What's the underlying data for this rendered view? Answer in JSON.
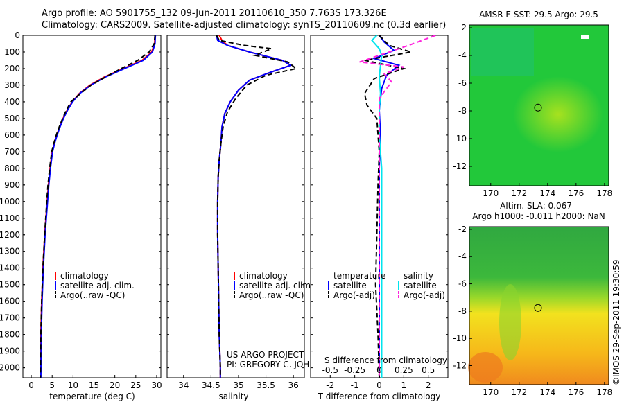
{
  "header": {
    "line1": "Argo profile: AO 5901755_132 09-Jun-2011 20110610_350 7.763S 173.326E",
    "line2": "Climatology: CARS2009. Satellite-adjusted climatology: synTS_20110609.nc (0.3d earlier)"
  },
  "colors": {
    "climatology": "#ff0000",
    "satellite": "#0000ff",
    "argo": "#000000",
    "sat_salinity": "#00e5ee",
    "argo_salinity": "#ff22dd"
  },
  "y_ticks": [
    "0",
    "100",
    "200",
    "300",
    "400",
    "500",
    "600",
    "700",
    "800",
    "900",
    "1000",
    "1100",
    "1200",
    "1300",
    "1400",
    "1500",
    "1600",
    "1700",
    "1800",
    "1900",
    "2000"
  ],
  "chart_data": [
    {
      "type": "line",
      "xlabel": "temperature (deg C)",
      "xlim": [
        -2,
        31
      ],
      "ylim": [
        2060,
        0
      ],
      "x_ticks": [
        "0",
        "5",
        "10",
        "15",
        "20",
        "25",
        "30"
      ],
      "legend_placement": "lower-middle",
      "legend": [
        "climatology",
        "satellite-adj. clim.",
        "Argo(..raw -QC)"
      ],
      "series": [
        {
          "name": "climatology",
          "style": "solid",
          "color": "red",
          "x": [
            29.6,
            29.5,
            28.8,
            26.5,
            22,
            17.5,
            14,
            11.5,
            9.8,
            8.6,
            7.6,
            6.8,
            6.1,
            5.5,
            5.0,
            4.5,
            4.1,
            3.8,
            3.2,
            2.8,
            2.5,
            2.3,
            2.2
          ],
          "y": [
            0,
            50,
            100,
            150,
            200,
            250,
            300,
            350,
            400,
            450,
            500,
            550,
            600,
            650,
            700,
            800,
            900,
            1000,
            1200,
            1400,
            1600,
            1800,
            2060
          ]
        },
        {
          "name": "satellite-adj. clim.",
          "style": "solid",
          "color": "blue",
          "x": [
            29.7,
            29.6,
            29.0,
            26.8,
            22.3,
            17.8,
            14.2,
            11.6,
            9.9,
            8.7,
            7.7,
            6.9,
            6.2,
            5.6,
            5.1,
            4.6,
            4.2,
            3.9,
            3.3,
            2.9,
            2.6,
            2.4,
            2.3
          ],
          "y": [
            0,
            50,
            100,
            150,
            200,
            250,
            300,
            350,
            400,
            450,
            500,
            550,
            600,
            650,
            700,
            800,
            900,
            1000,
            1200,
            1400,
            1600,
            1800,
            2060
          ]
        },
        {
          "name": "Argo(..raw -QC)",
          "style": "dashed",
          "color": "black",
          "x": [
            29.6,
            29.4,
            28.2,
            25.5,
            21.5,
            17.8,
            14.3,
            11.8,
            9.5,
            8.4,
            7.5,
            6.7,
            6.0,
            5.4,
            4.9,
            4.4,
            4.0,
            3.7,
            3.2,
            2.8,
            2.5,
            2.3,
            2.2
          ],
          "y": [
            0,
            50,
            100,
            150,
            200,
            250,
            300,
            350,
            400,
            450,
            500,
            550,
            600,
            650,
            700,
            800,
            900,
            1000,
            1200,
            1400,
            1600,
            1800,
            2060
          ]
        }
      ]
    },
    {
      "type": "line",
      "xlabel": "salinity",
      "xlim": [
        33.7,
        36.2
      ],
      "ylim": [
        2060,
        0
      ],
      "x_ticks": [
        "34",
        "34.5",
        "35",
        "35.5",
        "36"
      ],
      "legend_placement": "lower-middle",
      "legend": [
        "climatology",
        "satellite-adj. clim.",
        "Argo(..raw -QC)"
      ],
      "annotation_line1": "US ARGO PROJECT",
      "annotation_line2": "PI: GREGORY C. JOHNSON",
      "series": [
        {
          "name": "climatology",
          "style": "solid",
          "color": "red",
          "x": [
            34.65,
            34.7,
            34.8,
            35.2,
            35.8,
            35.95,
            35.6,
            35.2,
            35.0,
            34.85,
            34.75,
            34.7,
            34.68,
            34.65,
            34.63,
            34.62,
            34.62,
            34.63,
            34.64,
            34.65,
            34.66,
            34.67,
            34.67
          ],
          "y": [
            0,
            30,
            60,
            100,
            150,
            180,
            220,
            270,
            330,
            400,
            470,
            550,
            650,
            750,
            850,
            1000,
            1200,
            1400,
            1600,
            1800,
            1900,
            2000,
            2060
          ]
        },
        {
          "name": "satellite-adj. clim.",
          "style": "solid",
          "color": "blue",
          "x": [
            34.6,
            34.62,
            34.8,
            35.2,
            35.8,
            35.95,
            35.6,
            35.2,
            35.0,
            34.85,
            34.75,
            34.7,
            34.68,
            34.65,
            34.63,
            34.62,
            34.62,
            34.63,
            34.64,
            34.65,
            34.66,
            34.67,
            34.67
          ],
          "y": [
            0,
            30,
            60,
            100,
            150,
            180,
            220,
            270,
            330,
            400,
            470,
            550,
            650,
            750,
            850,
            1000,
            1200,
            1400,
            1600,
            1800,
            1900,
            2000,
            2060
          ]
        },
        {
          "name": "Argo(..raw -QC)",
          "style": "dashed",
          "color": "black",
          "x": [
            34.6,
            34.65,
            35.1,
            35.6,
            35.3,
            35.9,
            36.05,
            35.5,
            35.15,
            34.95,
            34.8,
            34.72,
            34.68,
            34.65,
            34.63,
            34.62,
            34.62,
            34.63,
            34.64,
            34.65,
            34.66,
            34.67,
            34.67
          ],
          "y": [
            0,
            30,
            60,
            80,
            120,
            160,
            200,
            240,
            300,
            380,
            460,
            550,
            650,
            750,
            850,
            1000,
            1200,
            1400,
            1600,
            1800,
            1900,
            2000,
            2060
          ]
        }
      ]
    },
    {
      "type": "line",
      "xlabel": "T difference from climatology",
      "xlabel_top": "S difference from climatology",
      "xlim": [
        -2.8,
        2.8
      ],
      "ylim": [
        2060,
        0
      ],
      "x_ticks": [
        "-2",
        "-1",
        "0",
        "1",
        "2"
      ],
      "top_ticks": [
        "-0.5",
        "-0.25",
        "0",
        "0.25",
        "0.5"
      ],
      "legend_placement": "lower-middle",
      "legend_titles": [
        "temperature",
        "salinity"
      ],
      "legend": [
        "satellite",
        "Argo(-adj)",
        "satellite",
        "Argo(-adj)"
      ],
      "series": [
        {
          "name": "temperature satellite",
          "style": "solid",
          "color": "blue",
          "x": [
            0,
            0.2,
            0.6,
            -0.2,
            0.8,
            0.3,
            0.1,
            0,
            0.05,
            0,
            0,
            0,
            0,
            0,
            0
          ],
          "y": [
            0,
            40,
            90,
            140,
            180,
            240,
            320,
            450,
            600,
            800,
            1000,
            1300,
            1600,
            1900,
            2060
          ]
        },
        {
          "name": "temperature Argo(-adj)",
          "style": "dashed",
          "color": "black",
          "x": [
            0,
            0.4,
            1.3,
            -0.6,
            1.0,
            -0.2,
            -0.6,
            -0.5,
            -0.1,
            0,
            -0.05,
            -0.1,
            -0.15,
            -0.05,
            0
          ],
          "y": [
            0,
            60,
            100,
            150,
            200,
            260,
            350,
            420,
            500,
            700,
            900,
            1200,
            1500,
            1800,
            2060
          ]
        },
        {
          "name": "salinity satellite",
          "style": "solid",
          "color": "cyan",
          "x": [
            -0.1,
            -0.3,
            0,
            0.1,
            0.05,
            0,
            0.05,
            0,
            0,
            0.1,
            0.1,
            0.1,
            0.1,
            0.1,
            0.1
          ],
          "y": [
            0,
            30,
            80,
            120,
            180,
            250,
            350,
            450,
            600,
            800,
            1000,
            1300,
            1600,
            1900,
            2060
          ]
        },
        {
          "name": "salinity Argo(-adj)",
          "style": "dashed",
          "color": "magenta",
          "x": [
            2.3,
            1.2,
            -0.8,
            1.0,
            0.2,
            0.5,
            0,
            0,
            0,
            0,
            0,
            0,
            0,
            0,
            0
          ],
          "y": [
            0,
            60,
            160,
            190,
            230,
            280,
            380,
            500,
            650,
            800,
            1000,
            1300,
            1600,
            1900,
            2060
          ]
        }
      ]
    },
    {
      "type": "heatmap",
      "title": "AMSR-E SST: 29.5  Argo: 29.5",
      "x_ticks": [
        "170",
        "172",
        "174",
        "176",
        "178"
      ],
      "y_ticks": [
        "-2",
        "-4",
        "-6",
        "-8",
        "-10",
        "-12"
      ],
      "xlim": [
        168.5,
        178.3
      ],
      "ylim": [
        -13.4,
        -1.8
      ],
      "marker": {
        "x": 173.326,
        "y": -7.763
      }
    },
    {
      "type": "heatmap",
      "title_line1": "Altim. SLA: 0.067",
      "title_line2": "Argo h1000: -0.011 h2000: NaN",
      "x_ticks": [
        "170",
        "172",
        "174",
        "176",
        "178"
      ],
      "y_ticks": [
        "-2",
        "-4",
        "-6",
        "-8",
        "-10",
        "-12"
      ],
      "xlim": [
        168.5,
        178.3
      ],
      "ylim": [
        -13.4,
        -1.8
      ],
      "marker": {
        "x": 173.326,
        "y": -7.763
      }
    }
  ],
  "credit": "©IMOS 29-Sep-2011 19:30:59"
}
